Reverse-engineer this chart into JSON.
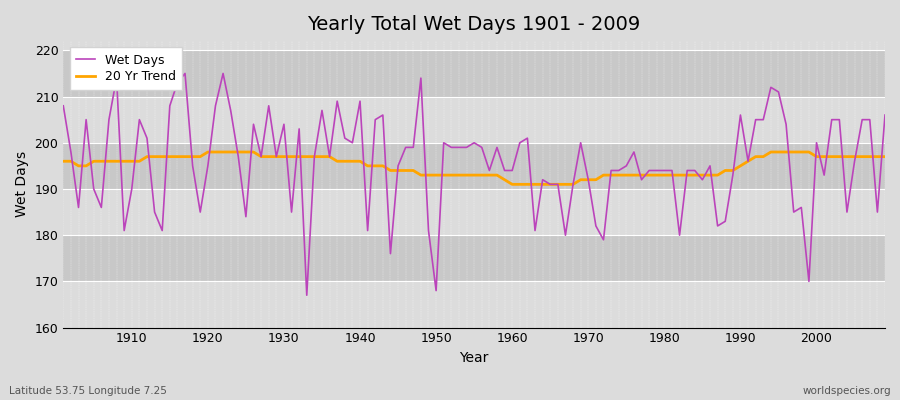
{
  "title": "Yearly Total Wet Days 1901 - 2009",
  "xlabel": "Year",
  "ylabel": "Wet Days",
  "subtitle": "Latitude 53.75 Longitude 7.25",
  "watermark": "worldspecies.org",
  "legend_labels": [
    "Wet Days",
    "20 Yr Trend"
  ],
  "wet_days_color": "#BB44BB",
  "trend_color": "#FFA500",
  "background_color": "#DCDCDC",
  "band_light": "#DCDCDC",
  "band_dark": "#C8C8C8",
  "ylim": [
    160,
    222
  ],
  "xlim": [
    1901,
    2009
  ],
  "yticks": [
    160,
    170,
    180,
    190,
    200,
    210,
    220
  ],
  "xticks": [
    1910,
    1920,
    1930,
    1940,
    1950,
    1960,
    1970,
    1980,
    1990,
    2000
  ],
  "years": [
    1901,
    1902,
    1903,
    1904,
    1905,
    1906,
    1907,
    1908,
    1909,
    1910,
    1911,
    1912,
    1913,
    1914,
    1915,
    1916,
    1917,
    1918,
    1919,
    1920,
    1921,
    1922,
    1923,
    1924,
    1925,
    1926,
    1927,
    1928,
    1929,
    1930,
    1931,
    1932,
    1933,
    1934,
    1935,
    1936,
    1937,
    1938,
    1939,
    1940,
    1941,
    1942,
    1943,
    1944,
    1945,
    1946,
    1947,
    1948,
    1949,
    1950,
    1951,
    1952,
    1953,
    1954,
    1955,
    1956,
    1957,
    1958,
    1959,
    1960,
    1961,
    1962,
    1963,
    1964,
    1965,
    1966,
    1967,
    1968,
    1969,
    1970,
    1971,
    1972,
    1973,
    1974,
    1975,
    1976,
    1977,
    1978,
    1979,
    1980,
    1981,
    1982,
    1983,
    1984,
    1985,
    1986,
    1987,
    1988,
    1989,
    1990,
    1991,
    1992,
    1993,
    1994,
    1995,
    1996,
    1997,
    1998,
    1999,
    2000,
    2001,
    2002,
    2003,
    2004,
    2005,
    2006,
    2007,
    2008,
    2009
  ],
  "wet_days": [
    208,
    198,
    186,
    205,
    190,
    186,
    205,
    214,
    181,
    190,
    205,
    201,
    185,
    181,
    208,
    213,
    215,
    195,
    185,
    195,
    208,
    215,
    207,
    197,
    184,
    204,
    197,
    208,
    197,
    204,
    185,
    203,
    167,
    197,
    207,
    197,
    209,
    201,
    200,
    209,
    181,
    205,
    206,
    176,
    195,
    199,
    199,
    214,
    181,
    168,
    200,
    199,
    199,
    199,
    200,
    199,
    194,
    199,
    194,
    194,
    200,
    201,
    181,
    192,
    191,
    191,
    180,
    191,
    200,
    192,
    182,
    179,
    194,
    194,
    195,
    198,
    192,
    194,
    194,
    194,
    194,
    180,
    194,
    194,
    192,
    195,
    182,
    183,
    193,
    206,
    196,
    205,
    205,
    212,
    211,
    204,
    185,
    186,
    170,
    200,
    193,
    205,
    205,
    185,
    196,
    205,
    205,
    185,
    206
  ],
  "trend_values": [
    196,
    196,
    195,
    195,
    196,
    196,
    196,
    196,
    196,
    196,
    196,
    197,
    197,
    197,
    197,
    197,
    197,
    197,
    197,
    198,
    198,
    198,
    198,
    198,
    198,
    198,
    197,
    197,
    197,
    197,
    197,
    197,
    197,
    197,
    197,
    197,
    196,
    196,
    196,
    196,
    195,
    195,
    195,
    194,
    194,
    194,
    194,
    193,
    193,
    193,
    193,
    193,
    193,
    193,
    193,
    193,
    193,
    193,
    192,
    191,
    191,
    191,
    191,
    191,
    191,
    191,
    191,
    191,
    192,
    192,
    192,
    193,
    193,
    193,
    193,
    193,
    193,
    193,
    193,
    193,
    193,
    193,
    193,
    193,
    193,
    193,
    193,
    194,
    194,
    195,
    196,
    197,
    197,
    198,
    198,
    198,
    198,
    198,
    198,
    197,
    197,
    197,
    197,
    197,
    197,
    197,
    197,
    197,
    197
  ]
}
